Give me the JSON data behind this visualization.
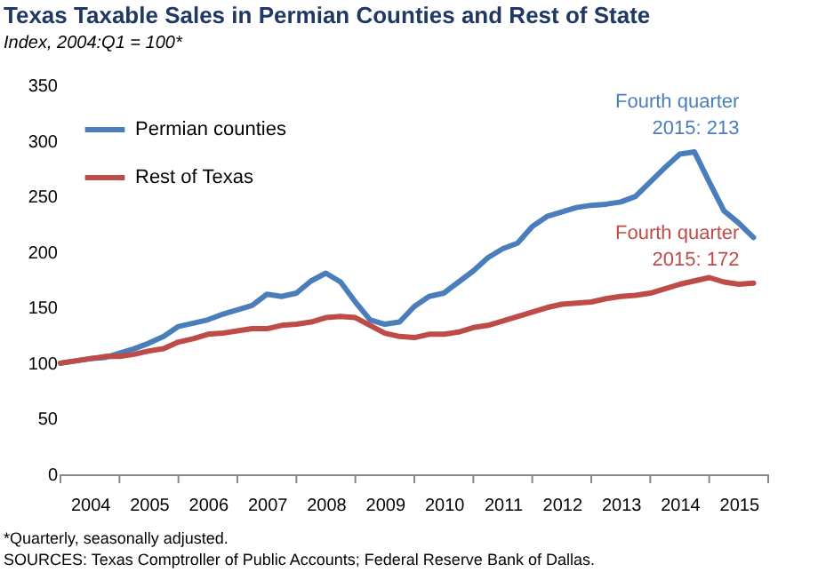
{
  "chart_data": {
    "type": "line",
    "title": "Texas Taxable Sales in Permian Counties and Rest of State",
    "subtitle": "Index, 2004:Q1 = 100*",
    "categories": [
      null,
      null,
      "2004",
      null,
      null,
      null,
      "2005",
      null,
      null,
      null,
      "2006",
      null,
      null,
      null,
      "2007",
      null,
      null,
      null,
      "2008",
      null,
      null,
      null,
      "2009",
      null,
      null,
      null,
      "2010",
      null,
      null,
      null,
      "2011",
      null,
      null,
      null,
      "2012",
      null,
      null,
      null,
      "2013",
      null,
      null,
      null,
      "2014",
      null,
      null,
      null,
      "2015",
      null
    ],
    "series": [
      {
        "name": "Permian counties",
        "color": "#4a7ebb",
        "values": [
          100,
          102,
          104,
          105,
          109,
          113,
          118,
          124,
          133,
          136,
          139,
          144,
          148,
          152,
          162,
          160,
          163,
          174,
          181,
          173,
          155,
          139,
          135,
          137,
          151,
          160,
          163,
          173,
          183,
          195,
          203,
          208,
          223,
          232,
          236,
          240,
          242,
          243,
          245,
          250,
          263,
          276,
          288,
          290,
          263,
          237,
          226,
          213
        ]
      },
      {
        "name": "Rest of Texas",
        "color": "#be4b48",
        "values": [
          100,
          102,
          104,
          106,
          106,
          108,
          111,
          113,
          119,
          122,
          126,
          127,
          129,
          131,
          131,
          134,
          135,
          137,
          141,
          142,
          141,
          134,
          127,
          124,
          123,
          126,
          126,
          128,
          132,
          134,
          138,
          142,
          146,
          150,
          153,
          154,
          155,
          158,
          160,
          161,
          163,
          167,
          171,
          174,
          177,
          173,
          171,
          172
        ]
      }
    ],
    "ylim": [
      0,
      350
    ],
    "yticks": [
      0,
      50,
      100,
      150,
      200,
      250,
      300,
      350
    ],
    "grid": false,
    "legend": "top left",
    "annotations": [
      "Fourth quarter 2015: 213",
      "Fourth quarter 2015: 172",
      "*Quarterly, seasonally adjusted.",
      "SOURCES: Texas Comptroller of Public Accounts; Federal Reserve Bank of Dallas."
    ]
  }
}
